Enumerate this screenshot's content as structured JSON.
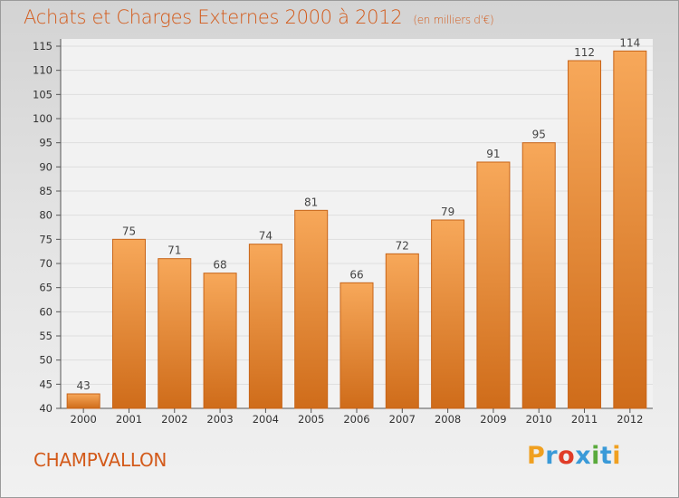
{
  "title": "Achats et Charges Externes 2000 à 2012",
  "subtitle": "(en milliers d'€)",
  "commune": "CHAMPVALLON",
  "logo": {
    "text": "Proxiti",
    "letters": [
      {
        "ch": "P",
        "color": "#f0a020"
      },
      {
        "ch": "r",
        "color": "#3a9ad8"
      },
      {
        "ch": "o",
        "color": "#e03c28"
      },
      {
        "ch": "x",
        "color": "#3a9ad8"
      },
      {
        "ch": "i",
        "color": "#5aaa3c"
      },
      {
        "ch": "t",
        "color": "#3a9ad8"
      },
      {
        "ch": "i",
        "color": "#f0a020"
      }
    ]
  },
  "colors": {
    "title": "#d35a1a",
    "bar_top": "#f7a85a",
    "bar_bottom": "#cf6c1a",
    "bar_edge": "#c76418",
    "axis": "#555555"
  },
  "chart_data": {
    "type": "bar",
    "categories": [
      "2000",
      "2001",
      "2002",
      "2003",
      "2004",
      "2005",
      "2006",
      "2007",
      "2008",
      "2009",
      "2010",
      "2011",
      "2012"
    ],
    "values": [
      43,
      75,
      71,
      68,
      74,
      81,
      66,
      72,
      79,
      91,
      95,
      112,
      114
    ],
    "ylim": [
      40,
      115
    ],
    "yticks": [
      40,
      45,
      50,
      55,
      60,
      65,
      70,
      75,
      80,
      85,
      90,
      95,
      100,
      105,
      110,
      115
    ],
    "grid": true,
    "data_labels": true
  }
}
